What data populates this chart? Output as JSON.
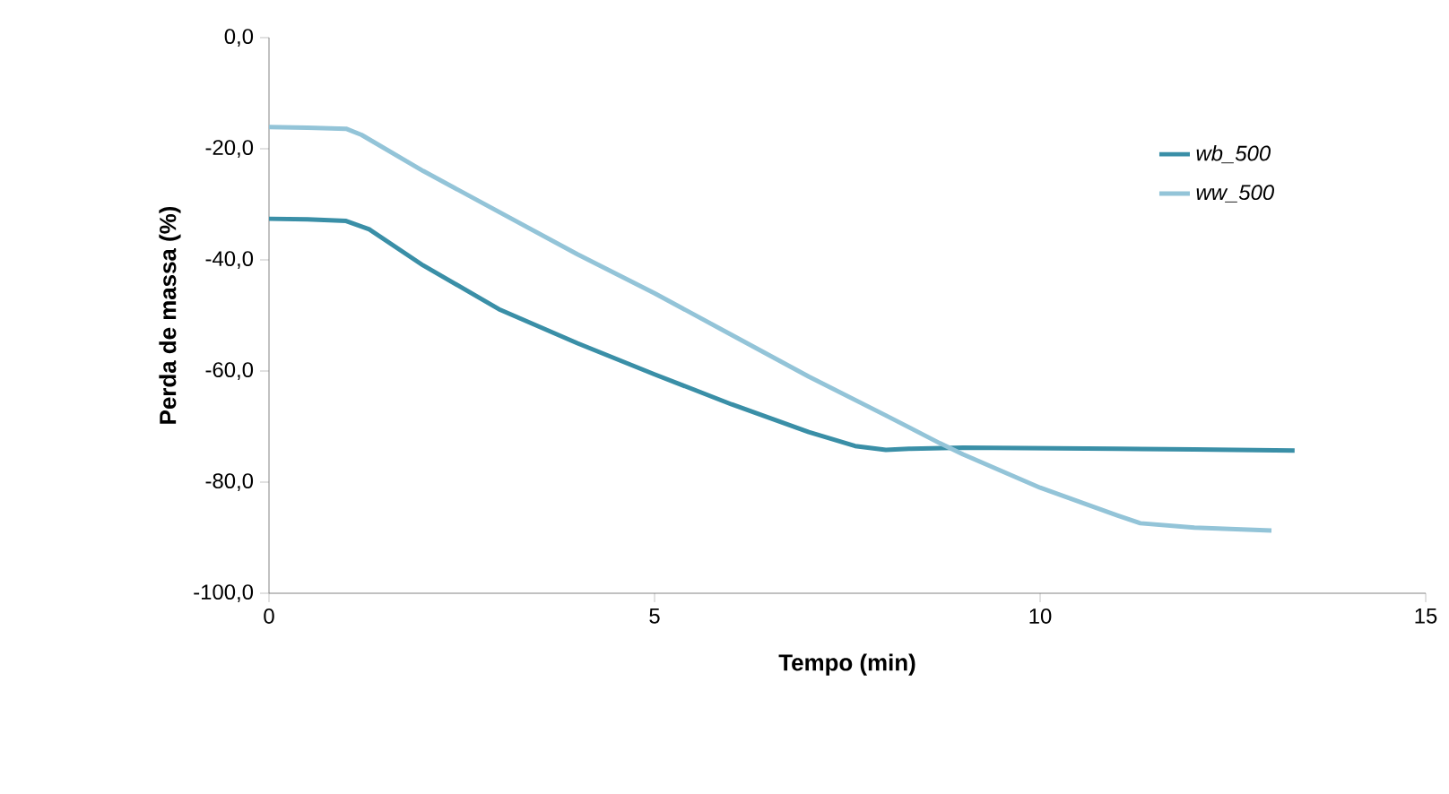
{
  "chart_data": {
    "type": "line",
    "xlabel": "Tempo (min)",
    "ylabel": "Perda de massa (%)",
    "xlim": [
      0,
      15
    ],
    "xticks": [
      0,
      5,
      10,
      15
    ],
    "ylim": [
      -100,
      0
    ],
    "yticks": [
      {
        "value": -100,
        "label": "-100,0"
      },
      {
        "value": -80,
        "label": "-80,0"
      },
      {
        "value": -60,
        "label": "-60,0"
      },
      {
        "value": -40,
        "label": "-40,0"
      },
      {
        "value": -20,
        "label": "-20,0"
      },
      {
        "value": 0,
        "label": "0,0"
      }
    ],
    "legend": "right",
    "grid": false,
    "series": [
      {
        "name": "wb_500",
        "color": "#3a8fa7",
        "x": [
          0,
          0.5,
          1,
          1.3,
          2,
          3,
          4,
          5,
          6,
          7,
          7.6,
          8,
          8.3,
          9,
          10,
          11,
          12,
          13.3
        ],
        "values": [
          -32.6,
          -32.7,
          -33,
          -34.5,
          -41,
          -49,
          -55,
          -60.6,
          -66,
          -71,
          -73.5,
          -74.2,
          -74,
          -73.8,
          -73.9,
          -74,
          -74.1,
          -74.3
        ]
      },
      {
        "name": "ww_500",
        "color": "#93c4d8",
        "x": [
          0,
          0.5,
          1,
          1.2,
          2,
          3,
          4,
          5,
          6,
          7,
          8,
          8.7,
          9,
          10,
          11,
          11.3,
          12,
          13
        ],
        "values": [
          -16.1,
          -16.2,
          -16.4,
          -17.5,
          -24,
          -31.5,
          -39,
          -46,
          -53.5,
          -61,
          -68,
          -73,
          -75,
          -81,
          -86,
          -87.4,
          -88.2,
          -88.7
        ]
      }
    ]
  }
}
